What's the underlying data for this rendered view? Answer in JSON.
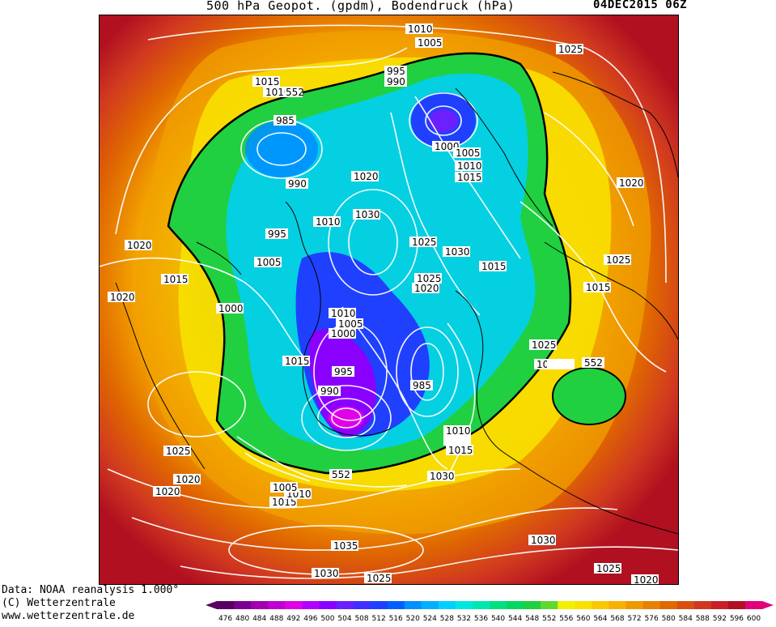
{
  "header": {
    "title": "500 hPa Geopot. (gpdm), Bodendruck (hPa)",
    "datestamp": "04DEC2015 06Z"
  },
  "footer": {
    "line1": "Data: NOAA reanalysis 1.000°",
    "line2": "(C) Wetterzentrale",
    "line3": "www.wetterzentrale.de"
  },
  "legend": {
    "values": [
      "476",
      "480",
      "484",
      "488",
      "492",
      "496",
      "500",
      "504",
      "508",
      "512",
      "516",
      "520",
      "524",
      "528",
      "532",
      "536",
      "540",
      "544",
      "548",
      "552",
      "556",
      "560",
      "564",
      "568",
      "572",
      "576",
      "580",
      "584",
      "588",
      "592",
      "596",
      "600"
    ],
    "colors": [
      "#5a0060",
      "#7a0090",
      "#a000b0",
      "#c000d0",
      "#e000e8",
      "#b000ff",
      "#8a00ff",
      "#6a20ff",
      "#4030ff",
      "#2040ff",
      "#0060ff",
      "#0090ff",
      "#00b0ff",
      "#00d0ff",
      "#00e8e0",
      "#00e8b0",
      "#00e080",
      "#00d860",
      "#20d040",
      "#60d830",
      "#f0f000",
      "#f8e000",
      "#f8c800",
      "#f8b000",
      "#f09800",
      "#e88000",
      "#e06800",
      "#d85010",
      "#d03820",
      "#c82028",
      "#b01020",
      "#e0007a"
    ]
  },
  "map": {
    "isobar_labels": [
      "1010",
      "1005",
      "1025",
      "995",
      "990",
      "1015",
      "1010",
      "985",
      "1000",
      "1005",
      "1010",
      "1015",
      "1020",
      "990",
      "1030",
      "1010",
      "995",
      "1005",
      "1025",
      "1030",
      "1015",
      "1020",
      "1025",
      "1020",
      "1015",
      "1000",
      "1010",
      "1005",
      "1000",
      "1015",
      "995",
      "990",
      "985",
      "1025",
      "1020",
      "1015",
      "1010",
      "1015",
      "1020",
      "1025",
      "1030",
      "1030",
      "1005",
      "1010",
      "1015",
      "1020",
      "1025",
      "1020",
      "985",
      "1030",
      "1035",
      "1030",
      "1025",
      "1030",
      "1025",
      "1020",
      "1010",
      "1015",
      "1010",
      "552",
      "552",
      "552",
      "1020",
      "1025",
      "1015",
      "1015",
      "1020",
      "1020",
      "1025",
      "1025"
    ]
  }
}
